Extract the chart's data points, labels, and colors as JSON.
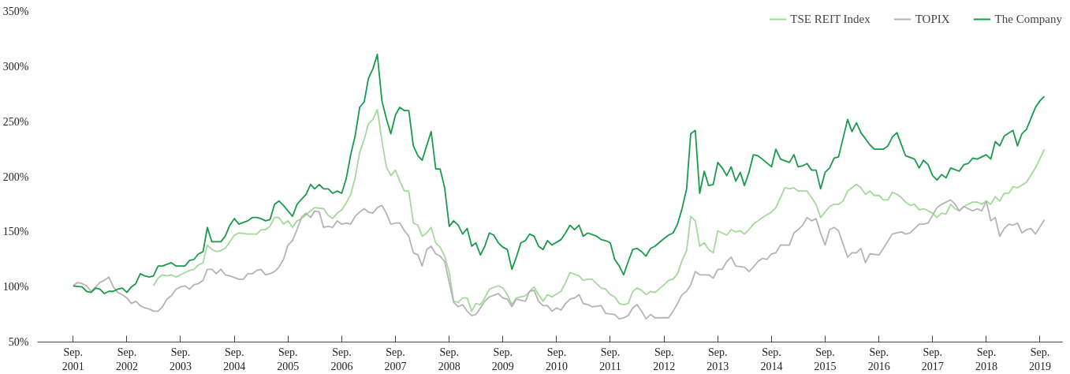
{
  "chart_data": {
    "type": "line",
    "xlim": [
      "2001-01",
      "2020-02"
    ],
    "ylim": [
      50,
      350
    ],
    "xticks": [
      {
        "value": "2001-09",
        "label": "Sep.\n2001"
      },
      {
        "value": "2002-09",
        "label": "Sep.\n2002"
      },
      {
        "value": "2003-09",
        "label": "Sep.\n2003"
      },
      {
        "value": "2004-09",
        "label": "Sep.\n2004"
      },
      {
        "value": "2005-09",
        "label": "Sep.\n2005"
      },
      {
        "value": "2006-09",
        "label": "Sep.\n2006"
      },
      {
        "value": "2007-09",
        "label": "Sep.\n2007"
      },
      {
        "value": "2008-09",
        "label": "Sep.\n2008"
      },
      {
        "value": "2009-09",
        "label": "Sep.\n2009"
      },
      {
        "value": "2010-09",
        "label": "Sep.\n2010"
      },
      {
        "value": "2011-09",
        "label": "Sep.\n2011"
      },
      {
        "value": "2012-09",
        "label": "Sep.\n2012"
      },
      {
        "value": "2013-09",
        "label": "Sep.\n2013"
      },
      {
        "value": "2014-09",
        "label": "Sep.\n2014"
      },
      {
        "value": "2015-09",
        "label": "Sep.\n2015"
      },
      {
        "value": "2016-09",
        "label": "Sep.\n2016"
      },
      {
        "value": "2017-09",
        "label": "Sep.\n2017"
      },
      {
        "value": "2018-09",
        "label": "Sep.\n2018"
      },
      {
        "value": "2019-09",
        "label": "Sep.\n2019"
      }
    ],
    "yticks": [
      {
        "value": 50,
        "label": "50%"
      },
      {
        "value": 100,
        "label": "100%"
      },
      {
        "value": 150,
        "label": "150%"
      },
      {
        "value": 200,
        "label": "200%"
      },
      {
        "value": 250,
        "label": "250%"
      },
      {
        "value": 300,
        "label": "300%"
      },
      {
        "value": 350,
        "label": "350%"
      }
    ],
    "grid": false,
    "legend": "top right",
    "line_style": "solid",
    "series": [
      {
        "name": "TSE REIT Index",
        "color": "#a3d99a",
        "x": [
          "2003-03",
          "2003-04",
          "2003-05",
          "2003-06",
          "2003-07",
          "2003-08",
          "2003-09",
          "2003-11",
          "2003-12",
          "2004-01",
          "2004-02",
          "2004-03",
          "2004-04",
          "2004-05",
          "2004-06",
          "2004-07",
          "2004-08",
          "2004-09",
          "2004-10",
          "2004-12",
          "2005-02",
          "2005-03",
          "2005-04",
          "2005-05",
          "2005-06",
          "2005-07",
          "2005-08",
          "2005-09",
          "2005-10",
          "2005-11",
          "2005-12",
          "2006-02",
          "2006-03",
          "2006-05",
          "2006-06",
          "2006-07",
          "2006-08",
          "2006-09",
          "2006-10",
          "2006-11",
          "2006-12",
          "2007-01",
          "2007-02",
          "2007-03",
          "2007-04",
          "2007-05",
          "2007-06",
          "2007-07",
          "2007-08",
          "2007-09",
          "2007-10",
          "2007-11",
          "2007-12",
          "2008-01",
          "2008-02",
          "2008-03",
          "2008-04",
          "2008-05",
          "2008-06",
          "2008-07",
          "2008-08",
          "2008-09",
          "2008-10",
          "2008-11",
          "2008-12",
          "2009-01",
          "2009-02",
          "2009-03",
          "2009-04",
          "2009-05",
          "2009-06",
          "2009-08",
          "2009-09",
          "2009-10",
          "2009-11",
          "2009-12",
          "2010-02",
          "2010-03",
          "2010-04",
          "2010-05",
          "2010-06",
          "2010-07",
          "2010-08",
          "2010-10",
          "2010-11",
          "2010-12",
          "2011-02",
          "2011-03",
          "2011-04",
          "2011-05",
          "2011-07",
          "2011-08",
          "2011-09",
          "2011-10",
          "2011-11",
          "2011-12",
          "2012-01",
          "2012-02",
          "2012-03",
          "2012-04",
          "2012-05",
          "2012-06",
          "2012-07",
          "2012-09",
          "2012-10",
          "2012-11",
          "2012-12",
          "2013-01",
          "2013-02",
          "2013-03",
          "2013-04",
          "2013-05",
          "2013-06",
          "2013-07",
          "2013-08",
          "2013-09",
          "2013-10",
          "2013-11",
          "2013-12",
          "2014-01",
          "2014-02",
          "2014-03",
          "2014-04",
          "2014-05",
          "2014-06",
          "2014-07",
          "2014-09",
          "2014-10",
          "2014-11",
          "2014-12",
          "2015-01",
          "2015-02",
          "2015-03",
          "2015-04",
          "2015-05",
          "2015-06",
          "2015-07",
          "2015-08",
          "2015-09",
          "2015-10",
          "2015-11",
          "2015-12",
          "2016-01",
          "2016-02",
          "2016-03",
          "2016-04",
          "2016-05",
          "2016-06",
          "2016-07",
          "2016-08",
          "2016-09",
          "2016-10",
          "2016-11",
          "2016-12",
          "2017-01",
          "2017-02",
          "2017-03",
          "2017-04",
          "2017-05",
          "2017-06",
          "2017-07",
          "2017-09",
          "2017-10",
          "2017-11",
          "2017-12",
          "2018-01",
          "2018-02",
          "2018-03",
          "2018-04",
          "2018-06",
          "2018-07",
          "2018-08",
          "2018-09",
          "2018-10",
          "2018-11",
          "2018-12",
          "2019-01",
          "2019-02",
          "2019-03",
          "2019-04",
          "2019-06",
          "2019-08",
          "2019-10"
        ],
        "values": [
          101,
          108,
          111,
          110,
          111,
          109,
          111,
          115,
          116,
          120,
          122,
          138,
          134,
          132,
          133,
          135,
          141,
          147,
          149,
          148,
          148,
          152,
          152,
          155,
          163,
          163,
          157,
          160,
          154,
          160,
          162,
          169,
          172,
          171,
          165,
          162,
          167,
          170,
          176,
          184,
          199,
          222,
          234,
          248,
          252,
          261,
          233,
          209,
          201,
          206,
          196,
          187,
          187,
          158,
          156,
          146,
          149,
          154,
          140,
          136,
          128,
          113,
          87,
          86,
          90,
          90,
          78,
          85,
          84,
          90,
          98,
          101,
          99,
          93,
          84,
          90,
          92,
          96,
          100,
          93,
          87,
          93,
          91,
          96,
          104,
          113,
          110,
          106,
          107,
          107,
          99,
          98,
          93,
          91,
          85,
          84,
          85,
          96,
          99,
          97,
          93,
          96,
          95,
          102,
          106,
          107,
          112,
          124,
          133,
          164,
          160,
          137,
          140,
          134,
          131,
          151,
          149,
          147,
          152,
          150,
          151,
          148,
          152,
          157,
          160,
          163,
          168,
          172,
          181,
          190,
          189,
          190,
          187,
          187,
          187,
          181,
          175,
          163,
          168,
          173,
          175,
          175,
          178,
          187,
          190,
          193,
          190,
          184,
          187,
          183,
          183,
          179,
          179,
          186,
          184,
          181,
          177,
          174,
          175,
          170,
          171,
          167,
          163,
          167,
          166,
          175,
          171,
          169,
          173,
          177,
          177,
          175,
          178,
          175,
          182,
          178,
          185,
          185,
          191,
          190,
          195,
          208,
          225
        ]
      },
      {
        "name": "TOPIX",
        "color": "#b4b4b4",
        "x": [
          "2001-09",
          "2001-10",
          "2001-11",
          "2001-12",
          "2002-01",
          "2002-02",
          "2002-03",
          "2002-04",
          "2002-05",
          "2002-06",
          "2002-07",
          "2002-08",
          "2002-09",
          "2002-10",
          "2002-11",
          "2002-12",
          "2003-01",
          "2003-02",
          "2003-03",
          "2003-04",
          "2003-05",
          "2003-06",
          "2003-07",
          "2003-08",
          "2003-09",
          "2003-10",
          "2003-11",
          "2003-12",
          "2004-01",
          "2004-02",
          "2004-03",
          "2004-04",
          "2004-05",
          "2004-06",
          "2004-07",
          "2004-08",
          "2004-10",
          "2004-11",
          "2004-12",
          "2005-01",
          "2005-02",
          "2005-03",
          "2005-04",
          "2005-05",
          "2005-06",
          "2005-07",
          "2005-08",
          "2005-09",
          "2005-10",
          "2005-11",
          "2005-12",
          "2006-01",
          "2006-02",
          "2006-03",
          "2006-04",
          "2006-05",
          "2006-06",
          "2006-07",
          "2006-08",
          "2006-09",
          "2006-10",
          "2006-11",
          "2006-12",
          "2007-01",
          "2007-02",
          "2007-03",
          "2007-04",
          "2007-05",
          "2007-06",
          "2007-07",
          "2007-08",
          "2007-09",
          "2007-10",
          "2007-11",
          "2007-12",
          "2008-01",
          "2008-02",
          "2008-03",
          "2008-04",
          "2008-05",
          "2008-06",
          "2008-07",
          "2008-08",
          "2008-09",
          "2008-10",
          "2008-11",
          "2008-12",
          "2009-01",
          "2009-02",
          "2009-03",
          "2009-04",
          "2009-05",
          "2009-06",
          "2009-08",
          "2009-09",
          "2009-10",
          "2009-11",
          "2009-12",
          "2010-02",
          "2010-03",
          "2010-04",
          "2010-05",
          "2010-06",
          "2010-07",
          "2010-08",
          "2010-09",
          "2010-10",
          "2010-11",
          "2010-12",
          "2011-01",
          "2011-02",
          "2011-03",
          "2011-04",
          "2011-05",
          "2011-07",
          "2011-08",
          "2011-10",
          "2011-11",
          "2011-12",
          "2012-01",
          "2012-02",
          "2012-03",
          "2012-04",
          "2012-05",
          "2012-06",
          "2012-07",
          "2012-09",
          "2012-10",
          "2012-11",
          "2012-12",
          "2013-01",
          "2013-02",
          "2013-03",
          "2013-04",
          "2013-05",
          "2013-07",
          "2013-08",
          "2013-09",
          "2013-10",
          "2013-11",
          "2013-12",
          "2014-01",
          "2014-03",
          "2014-04",
          "2014-05",
          "2014-06",
          "2014-07",
          "2014-08",
          "2014-09",
          "2014-10",
          "2014-11",
          "2015-01",
          "2015-02",
          "2015-03",
          "2015-04",
          "2015-05",
          "2015-06",
          "2015-07",
          "2015-08",
          "2015-09",
          "2015-10",
          "2015-11",
          "2015-12",
          "2016-01",
          "2016-02",
          "2016-03",
          "2016-04",
          "2016-05",
          "2016-06",
          "2016-07",
          "2016-09",
          "2016-10",
          "2016-12",
          "2017-01",
          "2017-02",
          "2017-03",
          "2017-04",
          "2017-06",
          "2017-07",
          "2017-08",
          "2017-10",
          "2017-11",
          "2018-01",
          "2018-02",
          "2018-03",
          "2018-04",
          "2018-06",
          "2018-07",
          "2018-08",
          "2018-09",
          "2018-10",
          "2018-11",
          "2018-12",
          "2019-01",
          "2019-02",
          "2019-03",
          "2019-04",
          "2019-05",
          "2019-06",
          "2019-07",
          "2019-08",
          "2019-10"
        ],
        "values": [
          101,
          104,
          103,
          101,
          96,
          100,
          104,
          106,
          109,
          100,
          95,
          93,
          90,
          85,
          87,
          83,
          81,
          80,
          78,
          78,
          82,
          89,
          92,
          98,
          100,
          101,
          98,
          102,
          103,
          106,
          116,
          116,
          112,
          116,
          111,
          110,
          107,
          107,
          112,
          112,
          115,
          116,
          111,
          112,
          114,
          118,
          125,
          138,
          142,
          152,
          163,
          167,
          163,
          169,
          168,
          154,
          155,
          154,
          160,
          157,
          158,
          157,
          164,
          168,
          171,
          168,
          167,
          172,
          174,
          167,
          157,
          158,
          158,
          151,
          146,
          131,
          129,
          119,
          134,
          137,
          130,
          128,
          123,
          104,
          86,
          82,
          84,
          78,
          74,
          75,
          81,
          87,
          91,
          94,
          90,
          89,
          82,
          89,
          87,
          96,
          97,
          87,
          83,
          83,
          78,
          81,
          79,
          85,
          89,
          90,
          93,
          85,
          84,
          82,
          83,
          76,
          75,
          71,
          72,
          74,
          81,
          84,
          78,
          71,
          75,
          72,
          72,
          72,
          78,
          85,
          93,
          96,
          102,
          114,
          111,
          111,
          108,
          116,
          116,
          123,
          127,
          119,
          118,
          114,
          118,
          123,
          126,
          125,
          130,
          131,
          138,
          138,
          149,
          152,
          156,
          163,
          160,
          162,
          149,
          138,
          152,
          154,
          151,
          139,
          127,
          131,
          131,
          135,
          122,
          130,
          129,
          135,
          148,
          149,
          150,
          148,
          149,
          157,
          157,
          158,
          172,
          175,
          179,
          175,
          169,
          173,
          169,
          171,
          169,
          178,
          160,
          163,
          146,
          153,
          157,
          156,
          158,
          149,
          152,
          153,
          148,
          161
        ]
      },
      {
        "name": "The Company",
        "color": "#1a9a4a",
        "x": [
          "2001-09",
          "2001-11",
          "2001-12",
          "2002-01",
          "2002-02",
          "2002-03",
          "2002-04",
          "2002-05",
          "2002-06",
          "2002-07",
          "2002-08",
          "2002-09",
          "2002-10",
          "2002-11",
          "2002-12",
          "2003-01",
          "2003-02",
          "2003-03",
          "2003-04",
          "2003-05",
          "2003-07",
          "2003-08",
          "2003-10",
          "2003-11",
          "2003-12",
          "2004-01",
          "2004-02",
          "2004-03",
          "2004-04",
          "2004-06",
          "2004-07",
          "2004-08",
          "2004-09",
          "2004-10",
          "2004-12",
          "2005-01",
          "2005-02",
          "2005-03",
          "2005-04",
          "2005-05",
          "2005-06",
          "2005-07",
          "2005-08",
          "2005-10",
          "2005-11",
          "2006-01",
          "2006-02",
          "2006-03",
          "2006-04",
          "2006-05",
          "2006-06",
          "2006-07",
          "2006-08",
          "2006-09",
          "2006-10",
          "2006-11",
          "2006-12",
          "2007-01",
          "2007-02",
          "2007-03",
          "2007-04",
          "2007-05",
          "2007-06",
          "2007-07",
          "2007-08",
          "2007-09",
          "2007-10",
          "2007-11",
          "2007-12",
          "2008-01",
          "2008-02",
          "2008-03",
          "2008-05",
          "2008-06",
          "2008-07",
          "2008-08",
          "2008-09",
          "2008-10",
          "2008-11",
          "2008-12",
          "2009-01",
          "2009-02",
          "2009-03",
          "2009-04",
          "2009-05",
          "2009-06",
          "2009-07",
          "2009-08",
          "2009-09",
          "2009-10",
          "2009-11",
          "2009-12",
          "2010-01",
          "2010-02",
          "2010-03",
          "2010-04",
          "2010-05",
          "2010-06",
          "2010-07",
          "2010-08",
          "2010-10",
          "2010-11",
          "2010-12",
          "2011-01",
          "2011-02",
          "2011-03",
          "2011-04",
          "2011-06",
          "2011-07",
          "2011-08",
          "2011-09",
          "2011-10",
          "2011-11",
          "2011-12",
          "2012-01",
          "2012-02",
          "2012-03",
          "2012-04",
          "2012-05",
          "2012-06",
          "2012-07",
          "2012-09",
          "2012-10",
          "2012-11",
          "2012-12",
          "2013-01",
          "2013-02",
          "2013-03",
          "2013-04",
          "2013-05",
          "2013-06",
          "2013-07",
          "2013-08",
          "2013-09",
          "2013-10",
          "2013-11",
          "2013-12",
          "2014-01",
          "2014-02",
          "2014-03",
          "2014-04",
          "2014-05",
          "2014-06",
          "2014-07",
          "2014-09",
          "2014-10",
          "2014-11",
          "2015-01",
          "2015-02",
          "2015-03",
          "2015-04",
          "2015-05",
          "2015-06",
          "2015-07",
          "2015-08",
          "2015-09",
          "2015-10",
          "2015-11",
          "2015-12",
          "2016-01",
          "2016-02",
          "2016-03",
          "2016-04",
          "2016-05",
          "2016-07",
          "2016-08",
          "2016-10",
          "2016-11",
          "2016-12",
          "2017-01",
          "2017-03",
          "2017-05",
          "2017-06",
          "2017-07",
          "2017-08",
          "2017-09",
          "2017-10",
          "2017-11",
          "2017-12",
          "2018-01",
          "2018-03",
          "2018-04",
          "2018-05",
          "2018-06",
          "2018-07",
          "2018-09",
          "2018-10",
          "2018-11",
          "2018-12",
          "2019-01",
          "2019-03",
          "2019-04",
          "2019-05",
          "2019-06",
          "2019-08",
          "2019-09",
          "2019-10"
        ],
        "values": [
          101,
          100,
          96,
          95,
          99,
          98,
          94,
          96,
          96,
          98,
          99,
          95,
          100,
          103,
          112,
          110,
          109,
          110,
          119,
          119,
          122,
          119,
          119,
          124,
          125,
          130,
          132,
          154,
          141,
          141,
          146,
          156,
          162,
          157,
          160,
          163,
          163,
          162,
          160,
          161,
          175,
          178,
          174,
          164,
          175,
          184,
          193,
          189,
          193,
          189,
          189,
          185,
          187,
          185,
          198,
          220,
          237,
          263,
          268,
          289,
          298,
          311,
          269,
          253,
          239,
          256,
          263,
          260,
          260,
          228,
          219,
          215,
          241,
          207,
          207,
          190,
          155,
          160,
          156,
          148,
          153,
          137,
          140,
          129,
          137,
          149,
          147,
          140,
          136,
          134,
          116,
          127,
          140,
          142,
          148,
          146,
          137,
          134,
          142,
          138,
          143,
          149,
          156,
          152,
          156,
          146,
          149,
          146,
          143,
          142,
          140,
          125,
          119,
          111,
          123,
          134,
          135,
          132,
          128,
          135,
          137,
          144,
          147,
          149,
          157,
          171,
          189,
          239,
          242,
          185,
          205,
          192,
          193,
          213,
          208,
          201,
          209,
          196,
          204,
          192,
          204,
          220,
          219,
          216,
          209,
          225,
          216,
          213,
          220,
          209,
          210,
          212,
          206,
          206,
          189,
          204,
          208,
          217,
          218,
          235,
          252,
          241,
          249,
          240,
          229,
          225,
          225,
          228,
          236,
          240,
          219,
          216,
          208,
          215,
          211,
          201,
          197,
          202,
          199,
          208,
          205,
          211,
          212,
          217,
          216,
          220,
          216,
          232,
          228,
          237,
          242,
          228,
          239,
          243,
          263,
          269,
          273
        ]
      }
    ]
  }
}
